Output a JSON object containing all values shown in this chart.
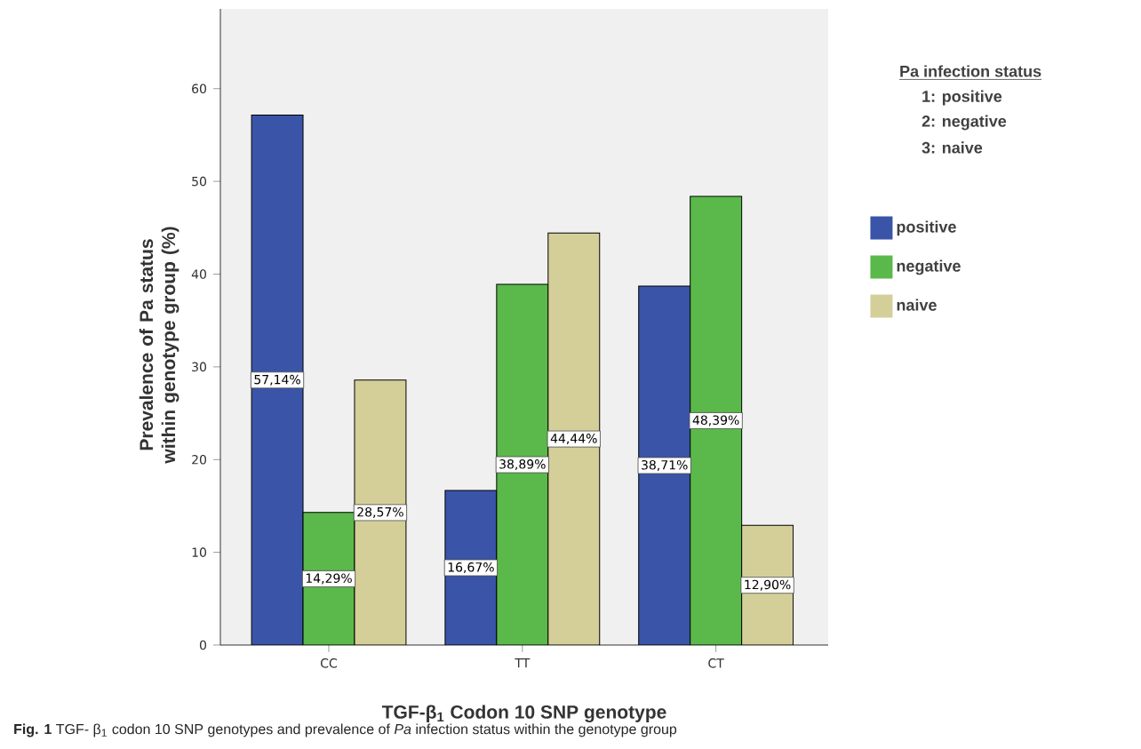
{
  "chart_data": {
    "type": "bar",
    "xlabel": "TGF-β$_{1}$ Codon 10 SNP genotype",
    "ylabel": "Prevalence of Pa status within genotype group (%)",
    "legend_title": "Pa infection status",
    "categories": [
      "CC",
      "TT",
      "CT"
    ],
    "series": [
      {
        "name": "positive",
        "color": "#3a54a8",
        "values": [
          57.14,
          16.67,
          38.71
        ],
        "value_labels": [
          "57,14%",
          "16,67%",
          "38,71%"
        ]
      },
      {
        "name": "negative",
        "color": "#5ab94a",
        "values": [
          14.29,
          38.89,
          48.39
        ],
        "value_labels": [
          "14,29%",
          "38,89%",
          "48,39%"
        ]
      },
      {
        "name": "naive",
        "color": "#d4cf98",
        "values": [
          28.57,
          44.44,
          12.9
        ],
        "value_labels": [
          "28,57%",
          "44,44%",
          "12,90%"
        ]
      }
    ],
    "ylim": [
      0,
      68.6
    ],
    "yticks": [
      0,
      10,
      20,
      30,
      40,
      50,
      60
    ],
    "grid": false,
    "legend": "right",
    "annotations": [
      "1:  positive",
      "2:  negative",
      "3:  naive",
      "**Fig. 1**  TGF- β$_{1}$ codon 10 SNP genotypes and prevalence of *Pa* infection status within the genotype group"
    ]
  }
}
